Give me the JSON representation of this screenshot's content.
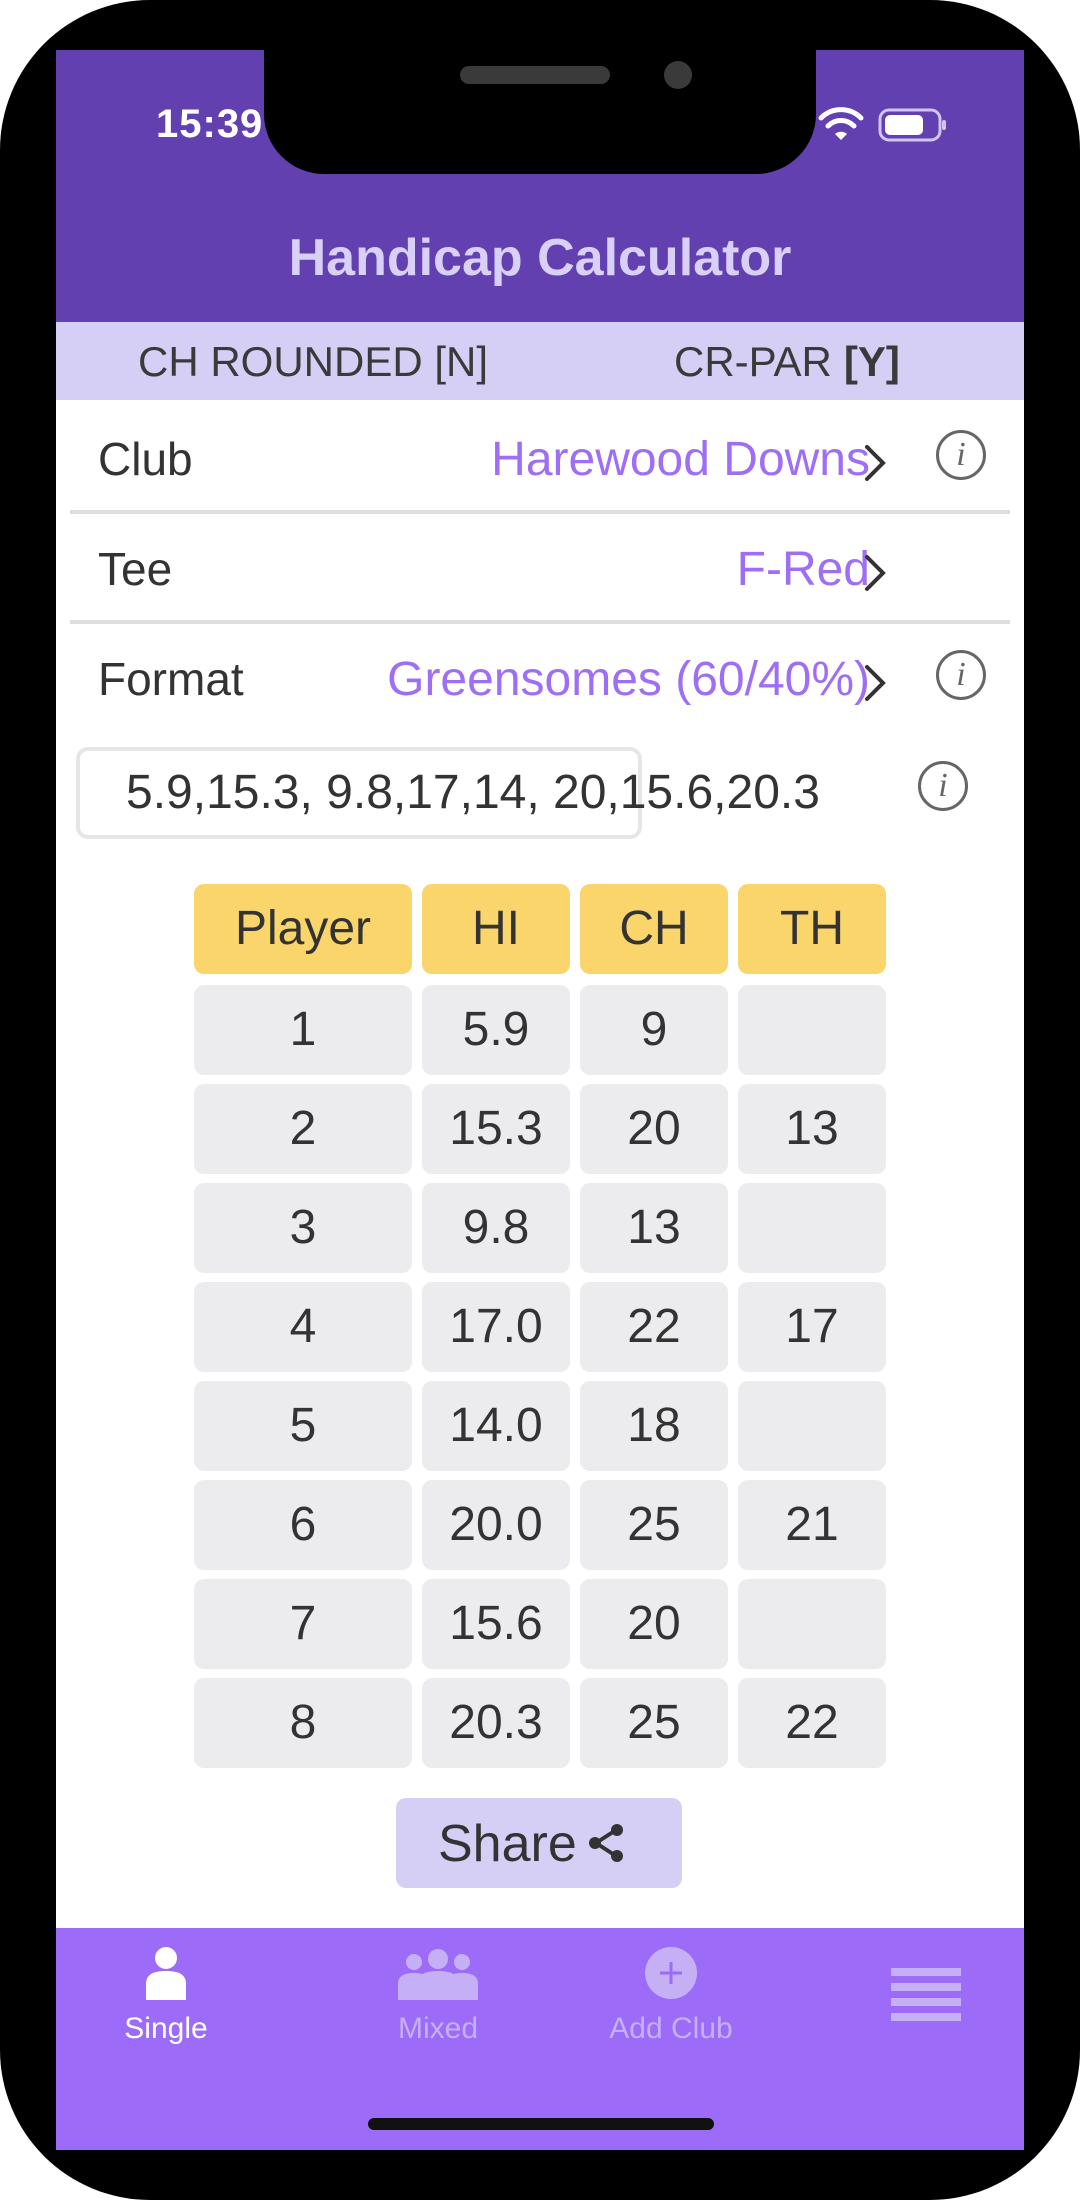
{
  "status_bar": {
    "time": "15:39"
  },
  "header": {
    "title": "Handicap Calculator"
  },
  "settings": {
    "ch_rounded": "CH ROUNDED [N]",
    "cr_par_label": "CR-PAR",
    "cr_par_value": "[Y]"
  },
  "rows": {
    "club": {
      "label": "Club",
      "value": "Harewood Downs"
    },
    "tee": {
      "label": "Tee",
      "value": "F-Red"
    },
    "format": {
      "label": "Format",
      "value": "Greensomes (60/40%)"
    }
  },
  "handicap_input": {
    "value": "5.9,15.3, 9.8,17,14, 20,15.6,20.3"
  },
  "info_glyph": "i",
  "table": {
    "headers": [
      "Player",
      "HI",
      "CH",
      "TH"
    ],
    "rows": [
      [
        "1",
        "5.9",
        "9",
        ""
      ],
      [
        "2",
        "15.3",
        "20",
        "13"
      ],
      [
        "3",
        "9.8",
        "13",
        ""
      ],
      [
        "4",
        "17.0",
        "22",
        "17"
      ],
      [
        "5",
        "14.0",
        "18",
        ""
      ],
      [
        "6",
        "20.0",
        "25",
        "21"
      ],
      [
        "7",
        "15.6",
        "20",
        ""
      ],
      [
        "8",
        "20.3",
        "25",
        "22"
      ]
    ]
  },
  "share": {
    "label": "Share"
  },
  "tabs": [
    {
      "label": "Single",
      "icon": "person-icon",
      "active": true
    },
    {
      "label": "Mixed",
      "icon": "group-icon",
      "active": false
    },
    {
      "label": "Add Club",
      "icon": "add-circle-icon",
      "active": false
    },
    {
      "label": "",
      "icon": "menu-icon",
      "active": false
    }
  ],
  "colors": {
    "header_bg": "#6340b0",
    "settings_bg": "#d5cff5",
    "accent": "#9e6ff5",
    "table_header": "#fad56b",
    "table_cell": "#ececee",
    "tabbar_bg": "#9c6cf8"
  }
}
